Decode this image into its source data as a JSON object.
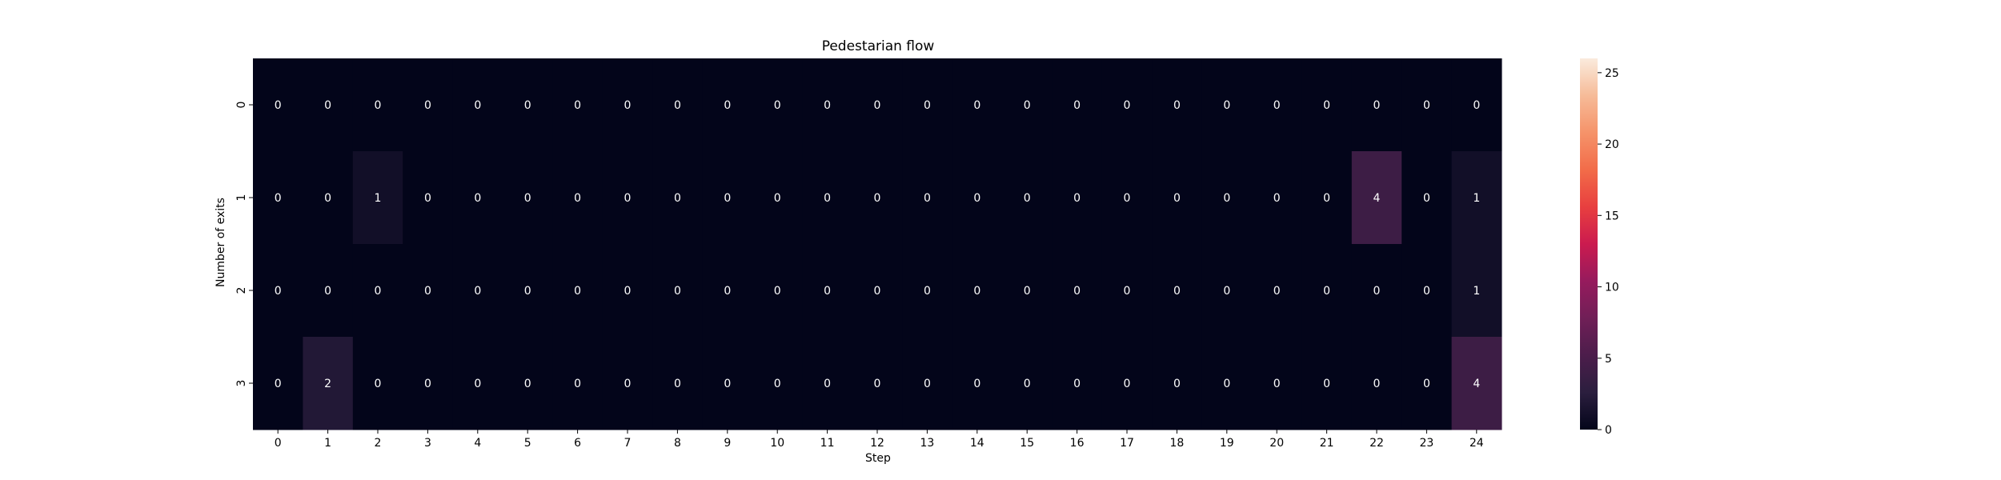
{
  "chart_data": {
    "type": "heatmap",
    "title": "Pedestarian flow",
    "xlabel": "Step",
    "ylabel": "Number of exits",
    "x": [
      "0",
      "1",
      "2",
      "3",
      "4",
      "5",
      "6",
      "7",
      "8",
      "9",
      "10",
      "11",
      "12",
      "13",
      "14",
      "15",
      "16",
      "17",
      "18",
      "19",
      "20",
      "21",
      "22",
      "23",
      "24"
    ],
    "y": [
      "0",
      "1",
      "2",
      "3"
    ],
    "values": [
      [
        0,
        0,
        0,
        0,
        0,
        0,
        0,
        0,
        0,
        0,
        0,
        0,
        0,
        0,
        0,
        0,
        0,
        0,
        0,
        0,
        0,
        0,
        0,
        0,
        0
      ],
      [
        0,
        0,
        1,
        0,
        0,
        0,
        0,
        0,
        0,
        0,
        0,
        0,
        0,
        0,
        0,
        0,
        0,
        0,
        0,
        0,
        0,
        0,
        4,
        0,
        1
      ],
      [
        0,
        0,
        0,
        0,
        0,
        0,
        0,
        0,
        0,
        0,
        0,
        0,
        0,
        0,
        0,
        0,
        0,
        0,
        0,
        0,
        0,
        0,
        0,
        0,
        1
      ],
      [
        0,
        2,
        0,
        0,
        0,
        0,
        0,
        0,
        0,
        0,
        0,
        0,
        0,
        0,
        0,
        0,
        0,
        0,
        0,
        0,
        0,
        0,
        0,
        0,
        4
      ]
    ],
    "colorbar": {
      "vmin": 0,
      "vmax": 26,
      "ticks": [
        "0",
        "5",
        "10",
        "15",
        "20",
        "25"
      ],
      "colormap": "rocket"
    }
  }
}
